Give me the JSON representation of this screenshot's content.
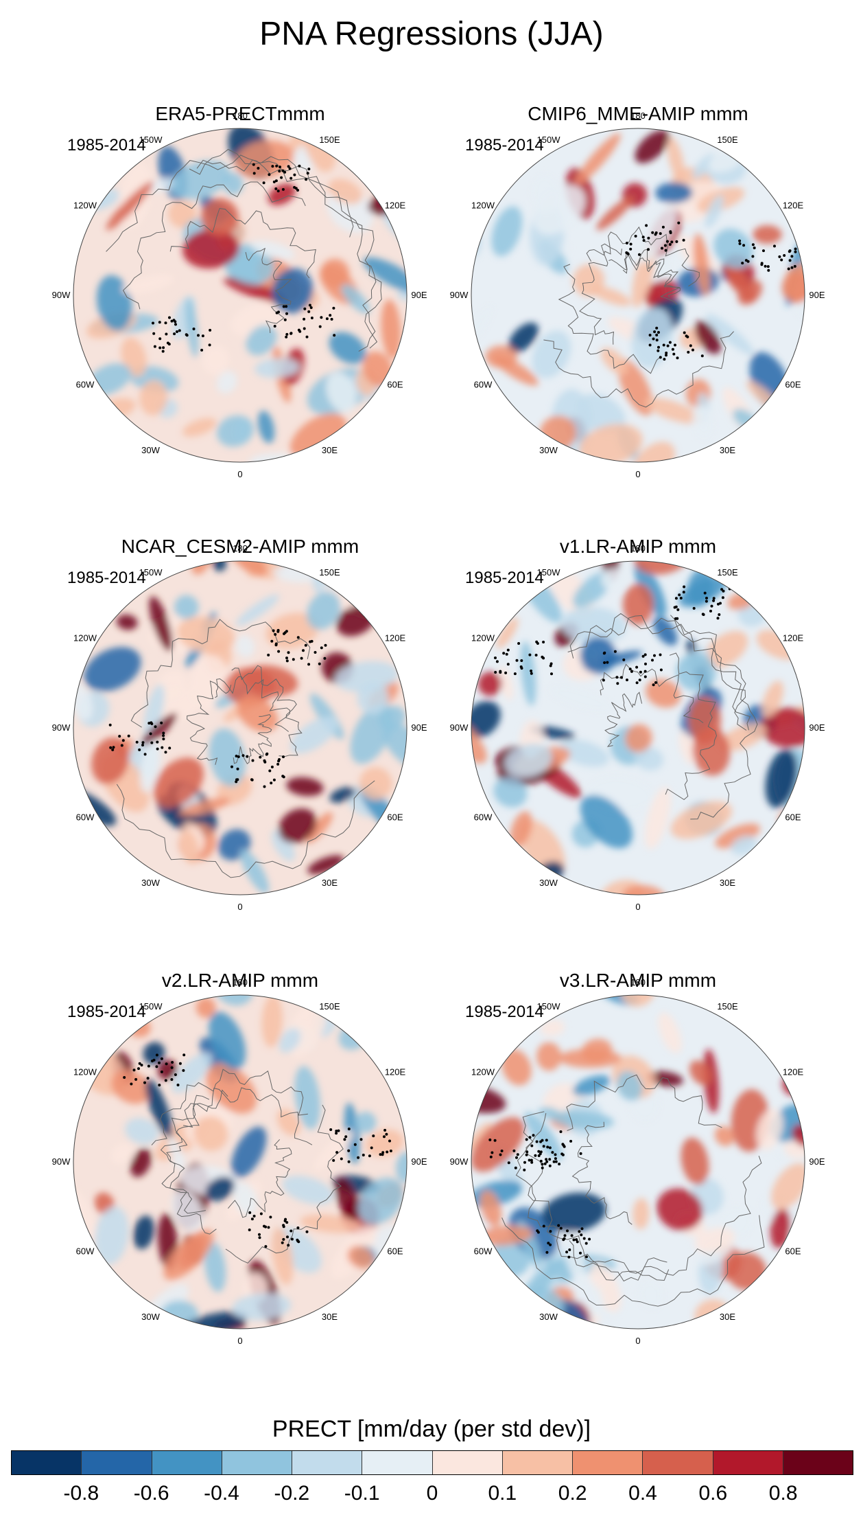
{
  "figure": {
    "title": "PNA Regressions (JJA)",
    "colorbar_title": "PRECT [mm/day (per std dev)]",
    "colorbar_ticks": [
      "-0.8",
      "-0.6",
      "-0.4",
      "-0.2",
      "-0.1",
      "0",
      "0.1",
      "0.2",
      "0.4",
      "0.6",
      "0.8"
    ],
    "colorbar_colors": [
      "#073466",
      "#2466a8",
      "#4393c3",
      "#90c4de",
      "#c2dcec",
      "#e6eff5",
      "#fbe7df",
      "#f7c0a5",
      "#ef9170",
      "#d6604d",
      "#b2182b",
      "#6b0219"
    ],
    "longitude_labels": [
      "180",
      "150E",
      "120E",
      "90E",
      "60E",
      "30E",
      "0",
      "30W",
      "60W",
      "90W",
      "120W",
      "150W"
    ]
  },
  "panels": [
    {
      "title": "ERA5-PRECTmmm",
      "period": "1985-2014"
    },
    {
      "title": "CMIP6_MME-AMIP  mmm",
      "period": "1985-2014"
    },
    {
      "title": "NCAR_CESM2-AMIP  mmm",
      "period": "1985-2014"
    },
    {
      "title": "v1.LR-AMIP  mmm",
      "period": "1985-2014"
    },
    {
      "title": "v2.LR-AMIP  mmm",
      "period": "1985-2014"
    },
    {
      "title": "v3.LR-AMIP  mmm",
      "period": "1985-2014"
    }
  ]
}
